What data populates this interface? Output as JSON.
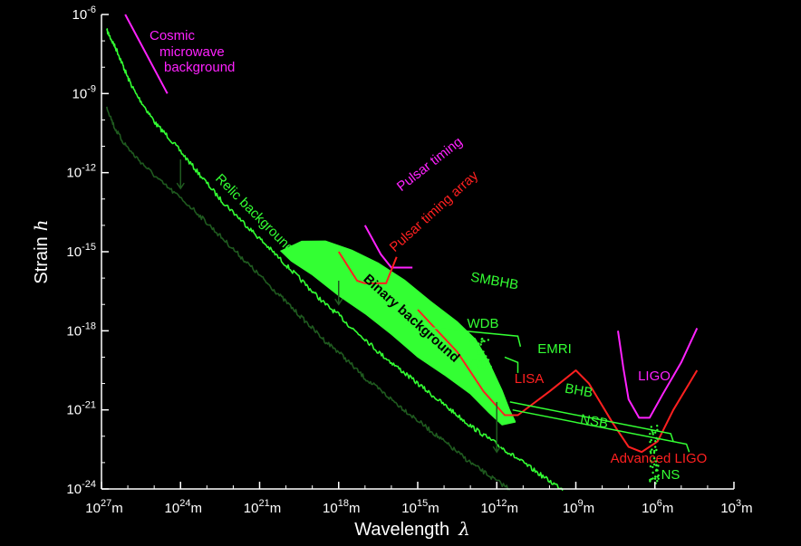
{
  "chart_data": {
    "type": "line",
    "xlabel": "Wavelength",
    "xlabel_symbol": "λ",
    "ylabel": "Strain",
    "ylabel_symbol": "h",
    "x_scale": "log",
    "y_scale": "log",
    "x_direction": "decreasing left-to-right",
    "xlim_m": [
      1e+27,
      1000.0
    ],
    "ylim": [
      1e-24,
      1e-06
    ],
    "x_ticks": [
      {
        "base": "10",
        "exp": "27",
        "unit": "m"
      },
      {
        "base": "10",
        "exp": "24",
        "unit": "m"
      },
      {
        "base": "10",
        "exp": "21",
        "unit": "m"
      },
      {
        "base": "10",
        "exp": "18",
        "unit": "m"
      },
      {
        "base": "10",
        "exp": "15",
        "unit": "m"
      },
      {
        "base": "10",
        "exp": "12",
        "unit": "m"
      },
      {
        "base": "10",
        "exp": "9",
        "unit": "m"
      },
      {
        "base": "10",
        "exp": "6",
        "unit": "m"
      },
      {
        "base": "10",
        "exp": "3",
        "unit": "m"
      }
    ],
    "y_ticks": [
      {
        "base": "10",
        "exp": "-6"
      },
      {
        "base": "10",
        "exp": "-9"
      },
      {
        "base": "10",
        "exp": "-12"
      },
      {
        "base": "10",
        "exp": "-15"
      },
      {
        "base": "10",
        "exp": "-18"
      },
      {
        "base": "10",
        "exp": "-21"
      },
      {
        "base": "10",
        "exp": "-24"
      }
    ],
    "grid": false,
    "colors": {
      "background": "#000000",
      "axes": "#ffffff",
      "source": "#33ff33",
      "relic_dim": "#1f5a1f",
      "detector_red": "#ff2020",
      "detector_magenta": "#ff22ff",
      "annotation_green": "#33ff33",
      "annotation_dark": "#000000"
    },
    "series": [
      {
        "name": "Relic background",
        "kind": "line",
        "color": "#33ff33",
        "points": [
          [
            26.8,
            -6.6
          ],
          [
            26.6,
            -7.0
          ],
          [
            26.4,
            -7.4
          ],
          [
            26.2,
            -7.9
          ],
          [
            26.0,
            -8.4
          ],
          [
            25.7,
            -9.0
          ],
          [
            25.3,
            -9.6
          ],
          [
            24.9,
            -10.2
          ],
          [
            24.5,
            -10.6
          ],
          [
            24.0,
            -11.2
          ],
          [
            23.5,
            -11.8
          ],
          [
            23.0,
            -12.4
          ],
          [
            22.5,
            -13.0
          ],
          [
            22.0,
            -13.5
          ],
          [
            21.5,
            -14.0
          ],
          [
            21.0,
            -14.5
          ],
          [
            20.5,
            -15.0
          ],
          [
            20.0,
            -15.5
          ],
          [
            19.5,
            -16.0
          ],
          [
            19.0,
            -16.5
          ],
          [
            18.5,
            -17.0
          ],
          [
            18.0,
            -17.4
          ],
          [
            17.5,
            -17.9
          ],
          [
            17.0,
            -18.3
          ],
          [
            16.5,
            -18.8
          ],
          [
            16.0,
            -19.2
          ],
          [
            15.5,
            -19.6
          ],
          [
            15.0,
            -20.0
          ],
          [
            14.5,
            -20.4
          ],
          [
            14.0,
            -20.8
          ],
          [
            13.5,
            -21.2
          ],
          [
            13.0,
            -21.6
          ],
          [
            12.5,
            -21.95
          ],
          [
            12.0,
            -22.3
          ],
          [
            11.5,
            -22.65
          ],
          [
            11.0,
            -23.0
          ],
          [
            10.5,
            -23.35
          ],
          [
            10.0,
            -23.7
          ],
          [
            9.5,
            -24.0
          ]
        ]
      },
      {
        "name": "Relic background lower",
        "kind": "line",
        "color": "#1f5a1f",
        "points": [
          [
            26.8,
            -9.5
          ],
          [
            26.5,
            -10.3
          ],
          [
            26.2,
            -10.8
          ],
          [
            25.8,
            -11.3
          ],
          [
            25.3,
            -11.8
          ],
          [
            24.8,
            -12.3
          ],
          [
            24.2,
            -12.8
          ],
          [
            23.5,
            -13.4
          ],
          [
            23.0,
            -13.9
          ],
          [
            22.5,
            -14.4
          ],
          [
            22.0,
            -14.9
          ],
          [
            21.5,
            -15.4
          ],
          [
            21.0,
            -15.9
          ],
          [
            20.5,
            -16.4
          ],
          [
            20.0,
            -16.9
          ],
          [
            19.5,
            -17.4
          ],
          [
            19.0,
            -17.9
          ],
          [
            18.5,
            -18.4
          ],
          [
            18.0,
            -18.8
          ],
          [
            17.5,
            -19.3
          ],
          [
            17.0,
            -19.8
          ],
          [
            16.5,
            -20.2
          ],
          [
            16.0,
            -20.6
          ],
          [
            15.5,
            -21.0
          ],
          [
            15.0,
            -21.4
          ],
          [
            14.5,
            -21.8
          ],
          [
            14.0,
            -22.2
          ],
          [
            13.5,
            -22.6
          ],
          [
            13.0,
            -23.0
          ],
          [
            12.5,
            -23.35
          ],
          [
            12.0,
            -23.7
          ],
          [
            11.5,
            -24.0
          ]
        ]
      },
      {
        "name": "Binary background",
        "kind": "band",
        "color": "#33ff33",
        "upper": [
          [
            19.4,
            -14.6
          ],
          [
            18.5,
            -14.5
          ],
          [
            17.5,
            -14.9
          ],
          [
            16.5,
            -15.5
          ],
          [
            15.5,
            -16.1
          ],
          [
            14.5,
            -16.9
          ],
          [
            13.5,
            -17.7
          ],
          [
            12.8,
            -18.4
          ],
          [
            12.3,
            -19.2
          ],
          [
            11.8,
            -20.2
          ],
          [
            11.5,
            -21.0
          ],
          [
            11.3,
            -21.4
          ]
        ],
        "lower": [
          [
            11.3,
            -21.4
          ],
          [
            11.8,
            -21.5
          ],
          [
            12.3,
            -21.1
          ],
          [
            13.0,
            -20.5
          ],
          [
            14.0,
            -19.7
          ],
          [
            15.0,
            -18.9
          ],
          [
            16.0,
            -18.1
          ],
          [
            17.0,
            -17.3
          ],
          [
            18.0,
            -16.6
          ],
          [
            19.0,
            -15.9
          ],
          [
            19.8,
            -15.3
          ],
          [
            20.2,
            -15.0
          ],
          [
            19.4,
            -14.6
          ]
        ]
      },
      {
        "name": "Cosmic microwave background",
        "kind": "line",
        "color": "#ff22ff",
        "points": [
          [
            26.1,
            -6.0
          ],
          [
            24.5,
            -9.0
          ]
        ]
      },
      {
        "name": "Pulsar timing",
        "kind": "line",
        "color": "#ff22ff",
        "points": [
          [
            17.0,
            -14.0
          ],
          [
            16.4,
            -15.1
          ],
          [
            16.0,
            -15.6
          ],
          [
            15.2,
            -15.6
          ]
        ]
      },
      {
        "name": "Pulsar timing array",
        "kind": "line",
        "color": "#ff2020",
        "points": [
          [
            18.0,
            -15.0
          ],
          [
            17.3,
            -16.1
          ],
          [
            17.0,
            -16.2
          ],
          [
            16.2,
            -16.2
          ],
          [
            15.8,
            -15.2
          ]
        ]
      },
      {
        "name": "LISA",
        "kind": "line",
        "color": "#ff2020",
        "points": [
          [
            15.0,
            -17.2
          ],
          [
            13.5,
            -18.8
          ],
          [
            12.5,
            -20.3
          ],
          [
            11.7,
            -21.2
          ],
          [
            11.2,
            -21.2
          ],
          [
            10.0,
            -20.3
          ],
          [
            9.0,
            -19.5
          ],
          [
            8.5,
            -20.0
          ],
          [
            7.6,
            -21.5
          ],
          [
            7.0,
            -22.4
          ],
          [
            6.5,
            -22.6
          ],
          [
            5.9,
            -22.2
          ],
          [
            5.3,
            -21.0
          ],
          [
            4.4,
            -19.5
          ]
        ]
      },
      {
        "name": "LIGO",
        "kind": "line",
        "color": "#ff22ff",
        "points": [
          [
            7.4,
            -18.0
          ],
          [
            7.2,
            -19.4
          ],
          [
            7.0,
            -20.6
          ],
          [
            6.6,
            -21.3
          ],
          [
            6.2,
            -21.3
          ],
          [
            5.7,
            -20.4
          ],
          [
            5.0,
            -19.2
          ],
          [
            4.4,
            -17.9
          ]
        ]
      }
    ],
    "annotations": [
      {
        "text": "Cosmic",
        "color": "#ff22ff"
      },
      {
        "text": "microwave",
        "color": "#ff22ff"
      },
      {
        "text": "background",
        "color": "#ff22ff"
      },
      {
        "text": "Relic background",
        "color": "#33ff33"
      },
      {
        "text": "Pulsar timing",
        "color": "#ff22ff"
      },
      {
        "text": "Pulsar timing array",
        "color": "#ff2020"
      },
      {
        "text": "Binary background",
        "color": "#000000"
      },
      {
        "text": "SMBHB",
        "color": "#33ff33"
      },
      {
        "text": "WDB",
        "color": "#33ff33"
      },
      {
        "text": "EMRI",
        "color": "#33ff33"
      },
      {
        "text": "LISA",
        "color": "#ff2020"
      },
      {
        "text": "BHB",
        "color": "#33ff33"
      },
      {
        "text": "NSB",
        "color": "#33ff33"
      },
      {
        "text": "LIGO",
        "color": "#ff22ff"
      },
      {
        "text": "Advanced LIGO",
        "color": "#ff2020"
      },
      {
        "text": "NS",
        "color": "#33ff33"
      }
    ]
  }
}
